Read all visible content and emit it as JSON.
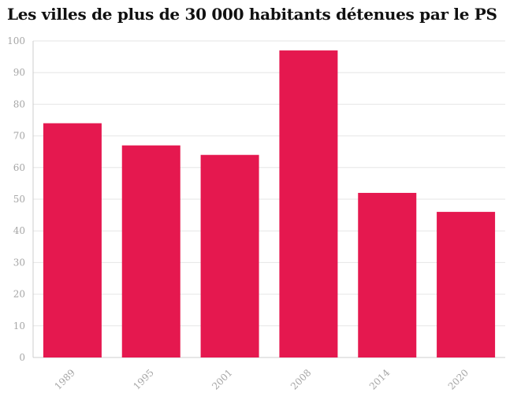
{
  "chart_data": {
    "type": "bar",
    "title": "Les villes de plus de 30 000 habitants détenues par le PS",
    "xlabel": "",
    "ylabel": "",
    "categories": [
      "1989",
      "1995",
      "2001",
      "2008",
      "2014",
      "2020"
    ],
    "values": [
      74,
      67,
      64,
      97,
      52,
      46
    ],
    "ylim": [
      0,
      100
    ],
    "yticks": [
      0,
      10,
      20,
      30,
      40,
      50,
      60,
      70,
      80,
      90,
      100
    ],
    "grid": true,
    "legend": "none",
    "bar_color": "#e5184f"
  }
}
